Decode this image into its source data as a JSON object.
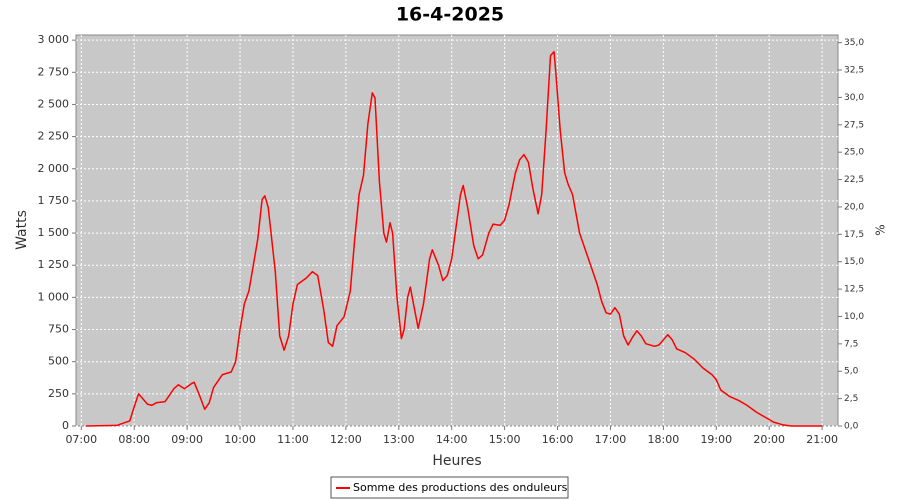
{
  "chart_data": {
    "type": "line",
    "title": "16-4-2025",
    "x_label": "Heures",
    "y_label": "Watts",
    "y2_label": "%",
    "x": [
      7.083,
      7.667,
      7.917,
      8,
      8.083,
      8.25,
      8.333,
      8.417,
      8.583,
      8.75,
      8.833,
      8.95,
      9.083,
      9.133,
      9.25,
      9.333,
      9.417,
      9.5,
      9.667,
      9.833,
      9.917,
      10,
      10.083,
      10.167,
      10.333,
      10.417,
      10.467,
      10.533,
      10.667,
      10.75,
      10.833,
      10.917,
      11,
      11.083,
      11.25,
      11.367,
      11.467,
      11.583,
      11.667,
      11.75,
      11.833,
      11.967,
      12.083,
      12.167,
      12.25,
      12.333,
      12.417,
      12.5,
      12.55,
      12.633,
      12.717,
      12.767,
      12.833,
      12.883,
      12.967,
      13.05,
      13.1,
      13.167,
      13.217,
      13.3,
      13.367,
      13.467,
      13.583,
      13.633,
      13.75,
      13.833,
      13.917,
      14,
      14.083,
      14.167,
      14.217,
      14.3,
      14.417,
      14.5,
      14.583,
      14.7,
      14.783,
      14.917,
      15,
      15.083,
      15.2,
      15.283,
      15.367,
      15.45,
      15.533,
      15.633,
      15.7,
      15.783,
      15.867,
      15.933,
      15.967,
      16.05,
      16.133,
      16.2,
      16.283,
      16.417,
      16.583,
      16.75,
      16.833,
      16.917,
      17,
      17.083,
      17.167,
      17.25,
      17.333,
      17.417,
      17.5,
      17.583,
      17.667,
      17.833,
      17.917,
      18,
      18.083,
      18.167,
      18.25,
      18.417,
      18.583,
      18.75,
      18.917,
      19,
      19.083,
      19.25,
      19.417,
      19.583,
      19.75,
      19.917,
      20.083,
      20.25,
      20.417,
      21
    ],
    "series": [
      {
        "name": "Somme des productions des onduleurs",
        "color": "#ff0000",
        "values": [
          0,
          5,
          40,
          150,
          250,
          170,
          160,
          180,
          190,
          290,
          320,
          290,
          330,
          340,
          220,
          130,
          180,
          300,
          400,
          420,
          500,
          750,
          950,
          1050,
          1450,
          1760,
          1790,
          1700,
          1200,
          700,
          590,
          700,
          950,
          1100,
          1150,
          1200,
          1170,
          900,
          650,
          620,
          780,
          850,
          1050,
          1450,
          1800,
          1950,
          2350,
          2590,
          2550,
          1900,
          1500,
          1430,
          1580,
          1500,
          1000,
          680,
          750,
          1000,
          1080,
          900,
          760,
          950,
          1300,
          1370,
          1250,
          1130,
          1170,
          1300,
          1550,
          1800,
          1870,
          1700,
          1400,
          1300,
          1330,
          1500,
          1570,
          1560,
          1600,
          1720,
          1960,
          2070,
          2110,
          2050,
          1850,
          1650,
          1800,
          2300,
          2880,
          2910,
          2750,
          2300,
          1970,
          1880,
          1800,
          1500,
          1300,
          1100,
          970,
          880,
          870,
          920,
          870,
          700,
          630,
          690,
          740,
          700,
          640,
          620,
          630,
          670,
          710,
          670,
          600,
          570,
          520,
          450,
          400,
          360,
          280,
          230,
          200,
          160,
          110,
          70,
          30,
          10,
          0,
          0
        ]
      }
    ],
    "xlim": [
      6.9,
      21.3
    ],
    "xticks": [
      {
        "value": 7,
        "label": "07:00"
      },
      {
        "value": 8,
        "label": "08:00"
      },
      {
        "value": 9,
        "label": "09:00"
      },
      {
        "value": 10,
        "label": "10:00"
      },
      {
        "value": 11,
        "label": "11:00"
      },
      {
        "value": 12,
        "label": "12:00"
      },
      {
        "value": 13,
        "label": "13:00"
      },
      {
        "value": 14,
        "label": "14:00"
      },
      {
        "value": 15,
        "label": "15:00"
      },
      {
        "value": 16,
        "label": "16:00"
      },
      {
        "value": 17,
        "label": "17:00"
      },
      {
        "value": 18,
        "label": "18:00"
      },
      {
        "value": 19,
        "label": "19:00"
      },
      {
        "value": 20,
        "label": "20:00"
      },
      {
        "value": 21,
        "label": "21:00"
      }
    ],
    "ylim": [
      0,
      3040
    ],
    "yticks": [
      0,
      250,
      500,
      750,
      {
        "value": 1000,
        "label": "1 000"
      },
      {
        "value": 1250,
        "label": "1 250"
      },
      {
        "value": 1500,
        "label": "1 500"
      },
      {
        "value": 1750,
        "label": "1 750"
      },
      {
        "value": 2000,
        "label": "2 000"
      },
      {
        "value": 2250,
        "label": "2 250"
      },
      {
        "value": 2500,
        "label": "2 500"
      },
      {
        "value": 2750,
        "label": "2 750"
      },
      {
        "value": 3000,
        "label": "3 000"
      }
    ],
    "y2lim": [
      0,
      35.7
    ],
    "y2ticks": [
      {
        "value": 0,
        "label": "0,0"
      },
      {
        "value": 2.5,
        "label": "2,5"
      },
      {
        "value": 5,
        "label": "5,0"
      },
      {
        "value": 7.5,
        "label": "7,5"
      },
      {
        "value": 10,
        "label": "10,0"
      },
      {
        "value": 12.5,
        "label": "12,5"
      },
      {
        "value": 15,
        "label": "15,0"
      },
      {
        "value": 17.5,
        "label": "17,5"
      },
      {
        "value": 20,
        "label": "20,0"
      },
      {
        "value": 22.5,
        "label": "22,5"
      },
      {
        "value": 25,
        "label": "25,0"
      },
      {
        "value": 27.5,
        "label": "27,5"
      },
      {
        "value": 30,
        "label": "30,0"
      },
      {
        "value": 32.5,
        "label": "32,5"
      },
      {
        "value": 35,
        "label": "35,0"
      }
    ],
    "grid": true,
    "legend": "bottom"
  }
}
